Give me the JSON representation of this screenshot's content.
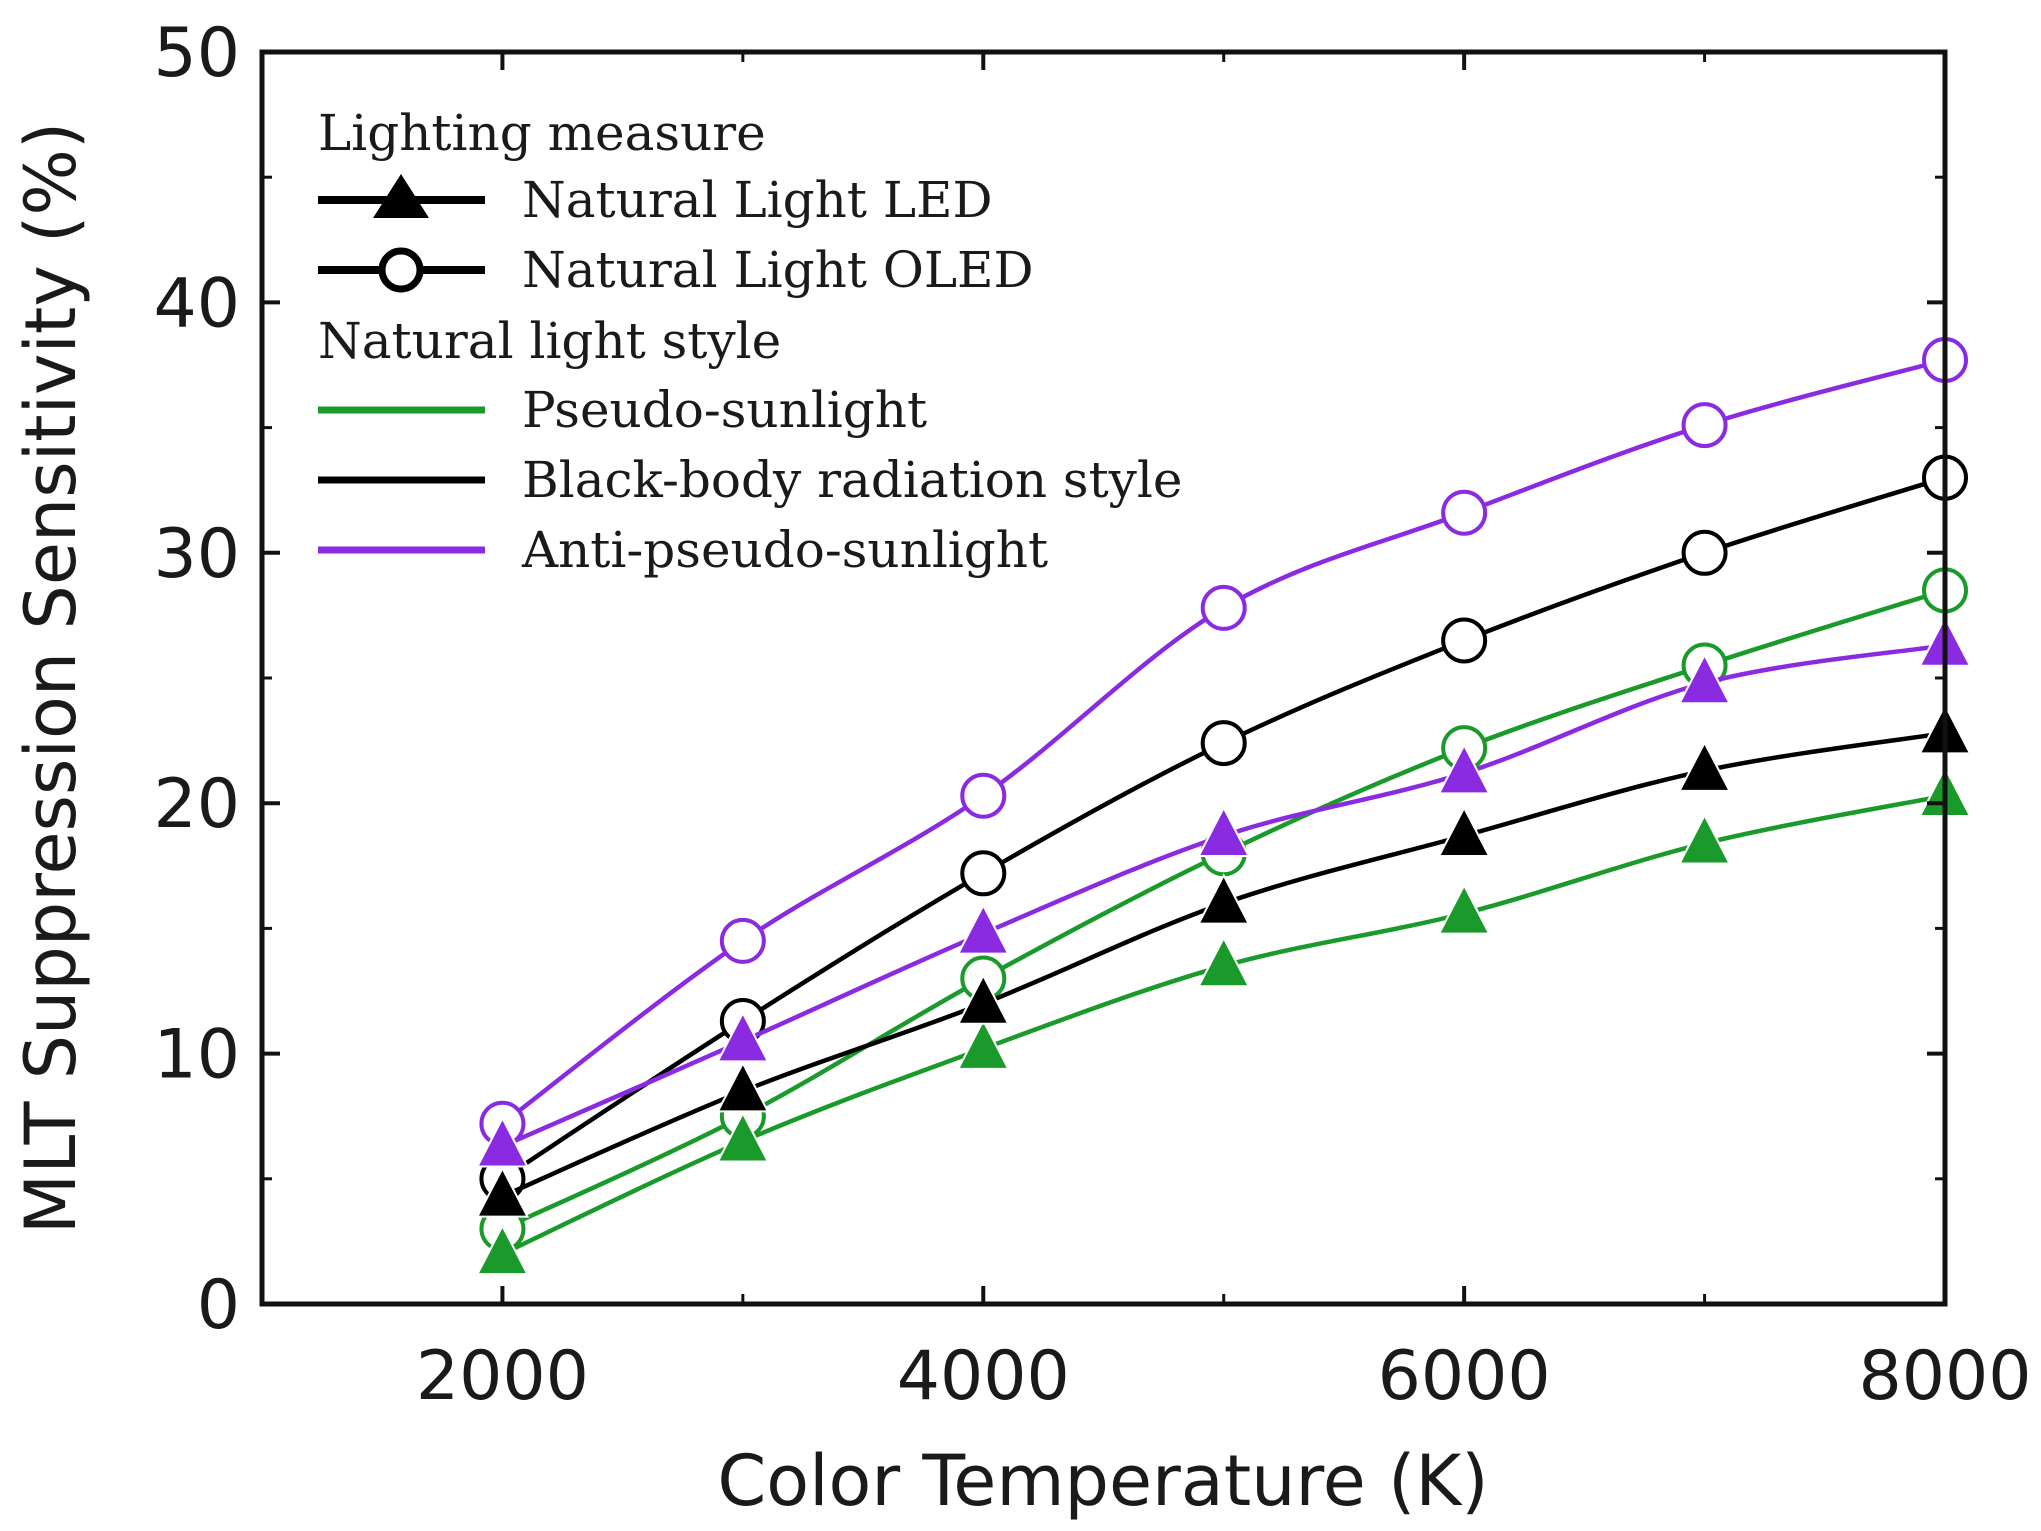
{
  "chart_data": {
    "type": "line",
    "xlabel": "Color Temperature (K)",
    "ylabel": "MLT Suppression Sensitivity (%)",
    "xlim": [
      1000,
      8000
    ],
    "ylim": [
      0,
      50
    ],
    "xticks": [
      2000,
      4000,
      6000,
      8000
    ],
    "yticks": [
      0,
      10,
      20,
      30,
      40,
      50
    ],
    "x": [
      2000,
      3000,
      4000,
      5000,
      6000,
      7000,
      8000
    ],
    "legend_position": "top-left",
    "legend": {
      "measure_heading": "Lighting measure",
      "measures": [
        {
          "key": "led",
          "label": "Natural Light LED",
          "marker": "filled-triangle"
        },
        {
          "key": "oled",
          "label": "Natural Light OLED",
          "marker": "open-circle"
        }
      ],
      "style_heading": "Natural light style",
      "styles": [
        {
          "key": "pseudo",
          "label": "Pseudo-sunlight",
          "color": "#1a9a2a"
        },
        {
          "key": "blackbody",
          "label": "Black-body radiation style",
          "color": "#000000"
        },
        {
          "key": "anti",
          "label": "Anti-pseudo-sunlight",
          "color": "#8a2be2"
        }
      ]
    },
    "series": [
      {
        "name": "Pseudo-sunlight OLED",
        "style": "pseudo",
        "measure": "oled",
        "values": [
          3.0,
          7.5,
          13.0,
          18.0,
          22.2,
          25.5,
          28.5
        ]
      },
      {
        "name": "Black-body radiation style OLED",
        "style": "blackbody",
        "measure": "oled",
        "values": [
          5.0,
          11.3,
          17.2,
          22.4,
          26.5,
          30.0,
          33.0
        ]
      },
      {
        "name": "Anti-pseudo-sunlight OLED",
        "style": "anti",
        "measure": "oled",
        "values": [
          7.2,
          14.5,
          20.3,
          27.8,
          31.6,
          35.1,
          37.7
        ]
      },
      {
        "name": "Pseudo-sunlight LED",
        "style": "pseudo",
        "measure": "led",
        "values": [
          2.0,
          6.5,
          10.2,
          13.5,
          15.6,
          18.4,
          20.3
        ]
      },
      {
        "name": "Black-body radiation style LED",
        "style": "blackbody",
        "measure": "led",
        "values": [
          4.3,
          8.5,
          12.0,
          16.0,
          18.7,
          21.3,
          22.8
        ]
      },
      {
        "name": "Anti-pseudo-sunlight LED",
        "style": "anti",
        "measure": "led",
        "values": [
          6.3,
          10.5,
          14.8,
          18.7,
          21.2,
          24.8,
          26.3
        ]
      }
    ]
  }
}
